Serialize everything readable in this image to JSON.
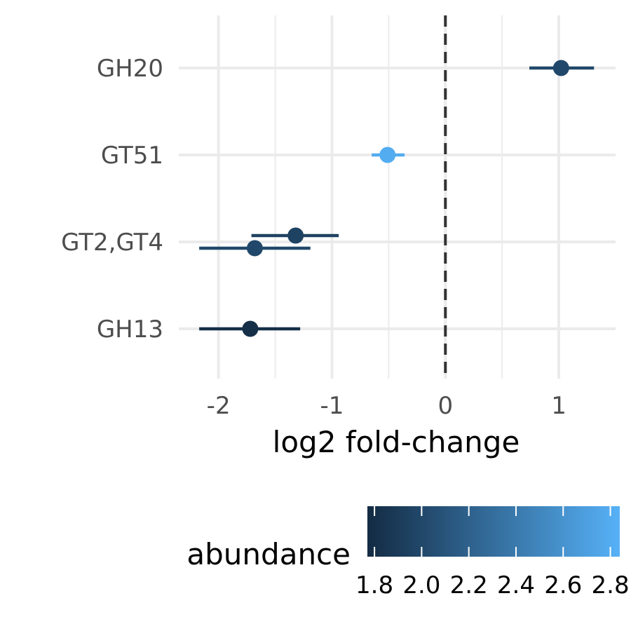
{
  "chart_data": {
    "type": "scatter",
    "subtype": "forest-plot-with-error-bars",
    "xlabel": "log2 fold-change",
    "ylabel": "",
    "xlim": [
      -2.35,
      1.5
    ],
    "x_ticks": [
      -2,
      -1,
      0,
      1
    ],
    "x_tick_labels": [
      "-2",
      "-1",
      "0",
      "1"
    ],
    "categories": [
      "GH20",
      "GT51",
      "GT2,GT4",
      "GH13"
    ],
    "reference_line": {
      "x": 0,
      "style": "dashed"
    },
    "grid": true,
    "points": [
      {
        "category": "GH20",
        "x": 1.02,
        "lower": 0.74,
        "upper": 1.31,
        "abundance": 2.0
      },
      {
        "category": "GT51",
        "x": -0.51,
        "lower": -0.65,
        "upper": -0.36,
        "abundance": 2.8
      },
      {
        "category": "GT2,GT4",
        "x": -1.32,
        "lower": -1.71,
        "upper": -0.94,
        "abundance": 1.95
      },
      {
        "category": "GT2,GT4",
        "x": -1.68,
        "lower": -2.17,
        "upper": -1.19,
        "abundance": 2.0
      },
      {
        "category": "GH13",
        "x": -1.72,
        "lower": -2.17,
        "upper": -1.28,
        "abundance": 1.8
      }
    ],
    "legend": {
      "title": "abundance",
      "position": "bottom",
      "type": "colorbar",
      "range": [
        1.77,
        2.84
      ],
      "ticks": [
        1.8,
        2.0,
        2.2,
        2.4,
        2.6,
        2.8
      ],
      "tick_labels": [
        "1.8",
        "2.0",
        "2.2",
        "2.4",
        "2.6",
        "2.8"
      ],
      "color_low": "#132B43",
      "color_high": "#56B1F7"
    }
  }
}
